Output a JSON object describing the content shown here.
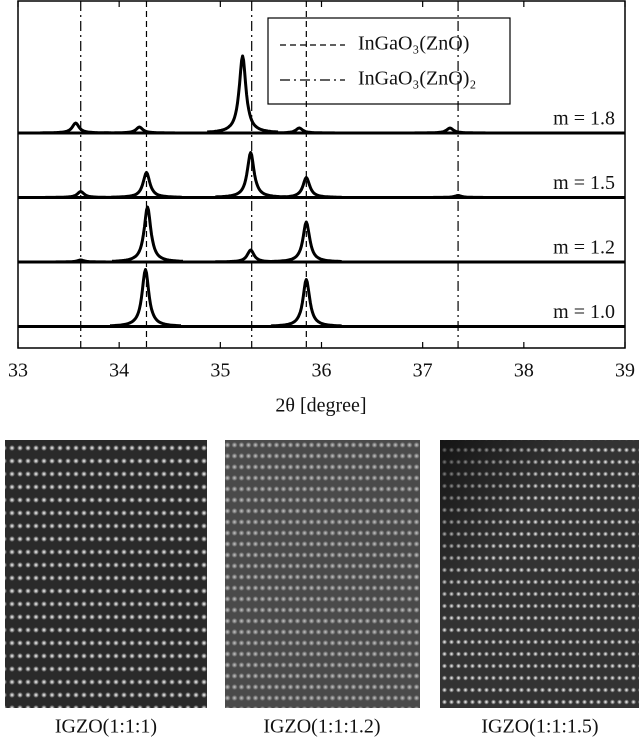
{
  "chart_data": {
    "type": "stacked-peaks",
    "xlabel": "2θ  [degree]",
    "xlim": [
      33,
      39
    ],
    "xticks": [
      33,
      34,
      35,
      36,
      37,
      38,
      39
    ],
    "legend": "top-center",
    "references": [
      {
        "name": "InGaO₃(ZnO)",
        "dash": "dashed",
        "x": [
          34.27,
          35.85
        ]
      },
      {
        "name": "InGaO₃(ZnO)₂",
        "dash": "dashdot",
        "x": [
          33.62,
          35.31,
          37.35
        ]
      }
    ],
    "series": [
      {
        "name": "m = 1.8",
        "color": "#000000",
        "x": [
          33.57,
          34.2,
          35.22,
          35.78,
          37.27
        ],
        "values": [
          10,
          6,
          77,
          5,
          5
        ]
      },
      {
        "name": "m = 1.5",
        "color": "#000000",
        "x": [
          33.62,
          34.27,
          35.3,
          35.85,
          37.35
        ],
        "values": [
          6,
          25,
          45,
          20,
          2
        ]
      },
      {
        "name": "m = 1.2",
        "color": "#000000",
        "x": [
          33.62,
          34.28,
          35.3,
          35.85
        ],
        "values": [
          2,
          55,
          12,
          40
        ]
      },
      {
        "name": "m = 1.0",
        "color": "#000000",
        "x": [
          34.26,
          35.85
        ],
        "values": [
          57,
          47
        ]
      }
    ]
  },
  "figures": [
    {
      "caption": "IGZO(1:1:1)"
    },
    {
      "caption": "IGZO(1:1:1.2)"
    },
    {
      "caption": "IGZO(1:1:1.5)"
    }
  ]
}
